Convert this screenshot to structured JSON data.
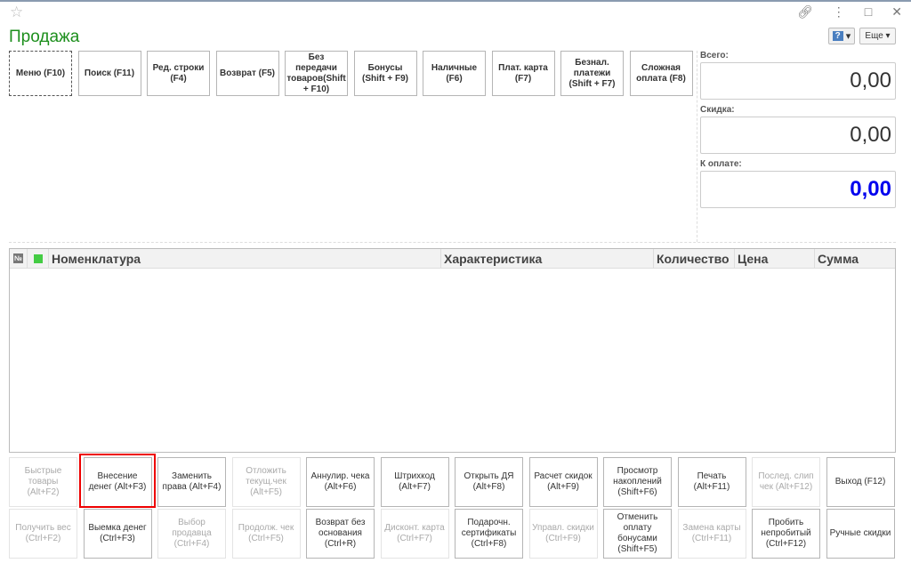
{
  "window": {
    "title": "Продажа",
    "more_label": "Еще ▾",
    "help_label": "?"
  },
  "totals": {
    "total_label": "Всего:",
    "total_value": "0,00",
    "discount_label": "Скидка:",
    "discount_value": "0,00",
    "topay_label": "К оплате:",
    "topay_value": "0,00",
    "topay_color": "#0000ee"
  },
  "top_buttons": [
    {
      "label": "Меню (F10)",
      "focus": true
    },
    {
      "label": "Поиск (F11)"
    },
    {
      "label": "Ред. строки (F4)"
    },
    {
      "label": "Возврат (F5)"
    },
    {
      "label": "Без передачи товаров(Shift + F10)"
    },
    {
      "label": "Бонусы (Shift + F9)"
    },
    {
      "label": "Наличные (F6)"
    },
    {
      "label": "Плат. карта (F7)"
    },
    {
      "label": "Безнал. платежи (Shift + F7)"
    },
    {
      "label": "Сложная оплата (F8)"
    }
  ],
  "table": {
    "columns": [
      "№",
      "",
      "Номенклатура",
      "Характеристика",
      "Количество",
      "Цена",
      "Сумма"
    ]
  },
  "bottom_buttons": [
    [
      {
        "label": "Быстрые товары (Alt+F2)",
        "disabled": true
      },
      {
        "label": "Внесение денег (Alt+F3)",
        "highlighted": true
      },
      {
        "label": "Заменить права (Alt+F4)"
      },
      {
        "label": "Отложить текущ.чек (Alt+F5)",
        "disabled": true
      },
      {
        "label": "Аннулир. чека (Alt+F6)"
      },
      {
        "label": "Штрихкод (Alt+F7)"
      },
      {
        "label": "Открыть ДЯ (Alt+F8)"
      },
      {
        "label": "Расчет скидок (Alt+F9)"
      },
      {
        "label": "Просмотр накоплений (Shift+F6)"
      },
      {
        "label": "Печать (Alt+F11)"
      },
      {
        "label": "Послед. слип чек (Alt+F12)",
        "disabled": true
      },
      {
        "label": "Выход (F12)"
      }
    ],
    [
      {
        "label": "Получить вес (Ctrl+F2)",
        "disabled": true
      },
      {
        "label": "Выемка денег (Ctrl+F3)"
      },
      {
        "label": "Выбор продавца (Ctrl+F4)",
        "disabled": true
      },
      {
        "label": "Продолж. чек (Ctrl+F5)",
        "disabled": true
      },
      {
        "label": "Возврат без основания (Ctrl+R)"
      },
      {
        "label": "Дисконт. карта (Ctrl+F7)",
        "disabled": true
      },
      {
        "label": "Подарочн. сертификаты (Ctrl+F8)"
      },
      {
        "label": "Управл. скидки (Ctrl+F9)",
        "disabled": true
      },
      {
        "label": "Отменить оплату бонусами (Shift+F5)"
      },
      {
        "label": "Замена карты (Ctrl+F11)",
        "disabled": true
      },
      {
        "label": "Пробить непробитый (Ctrl+F12)"
      },
      {
        "label": "Ручные скидки"
      }
    ]
  ]
}
